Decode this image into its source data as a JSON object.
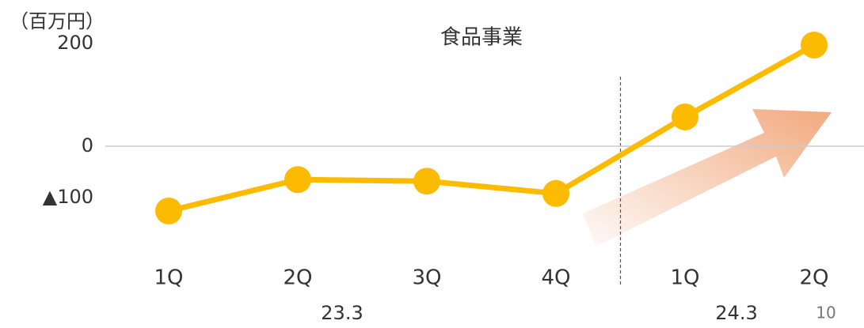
{
  "chart_data": {
    "type": "line",
    "title": "食品事業",
    "y_label": "（百万円）",
    "categories": [
      "1Q",
      "2Q",
      "3Q",
      "4Q",
      "1Q",
      "2Q"
    ],
    "x_groups": [
      "23.3",
      "24.3"
    ],
    "series": [
      {
        "name": "食品事業",
        "color": "#fdbb00",
        "values": [
          -126,
          -65,
          -68,
          -92,
          57,
          197
        ]
      }
    ],
    "ylim": [
      -210,
      225
    ],
    "yticks": [
      {
        "value": 200,
        "label": "200"
      },
      0,
      {
        "value": -100,
        "label": "▲100"
      }
    ],
    "grid": false
  },
  "page_number": "10"
}
